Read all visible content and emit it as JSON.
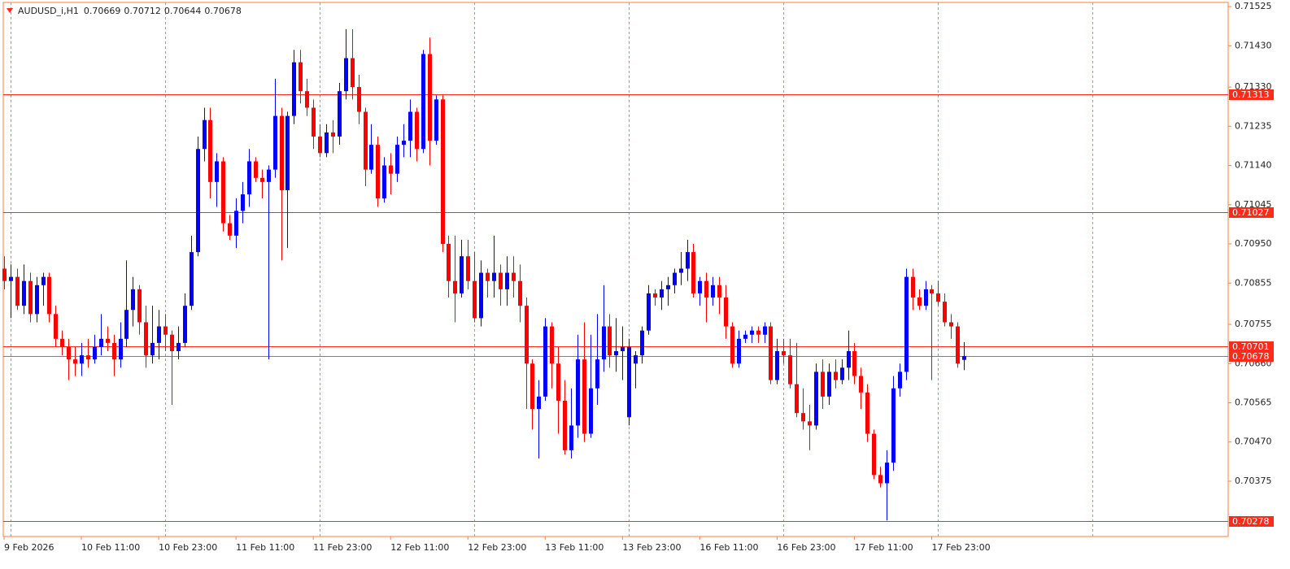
{
  "chart_data": {
    "type": "candlestick",
    "symbol": "AUDUSD_i,H1",
    "up_color": "#0000ff",
    "down_color": "#ff0000",
    "level_color": "#ff2a1a",
    "last_price_color": "#7f7f7f",
    "ylim": [
      0.70241,
      0.71535
    ],
    "yticks": [
      0.71525,
      {
        "value": 0.7143,
        "label": "0.71430"
      },
      {
        "value": 0.7133,
        "label": "0.71330"
      },
      0.71235,
      {
        "value": 0.7114,
        "label": "0.71140"
      },
      0.71045,
      {
        "value": 0.7095,
        "label": "0.70950"
      },
      0.70855,
      0.70755,
      {
        "value": 0.7066,
        "label": "0.70660"
      },
      0.70565,
      {
        "value": 0.7047,
        "label": "0.70470"
      },
      0.70375
    ],
    "levels": [
      0.71313,
      0.71027,
      0.70701,
      0.70278
    ],
    "categories": [
      "9 Feb 2026",
      null,
      null,
      null,
      null,
      null,
      null,
      null,
      null,
      null,
      null,
      null,
      "10 Feb 11:00",
      null,
      null,
      null,
      null,
      null,
      null,
      null,
      null,
      null,
      null,
      null,
      "10 Feb 23:00",
      null,
      null,
      null,
      null,
      null,
      null,
      null,
      null,
      null,
      null,
      null,
      "11 Feb 11:00",
      null,
      null,
      null,
      null,
      null,
      null,
      null,
      null,
      null,
      null,
      null,
      "11 Feb 23:00",
      null,
      null,
      null,
      null,
      null,
      null,
      null,
      null,
      null,
      null,
      null,
      "12 Feb 11:00",
      null,
      null,
      null,
      null,
      null,
      null,
      null,
      null,
      null,
      null,
      null,
      "12 Feb 23:00",
      null,
      null,
      null,
      null,
      null,
      null,
      null,
      null,
      null,
      null,
      null,
      "13 Feb 11:00",
      null,
      null,
      null,
      null,
      null,
      null,
      null,
      null,
      null,
      null,
      null,
      "13 Feb 23:00",
      null,
      null,
      null,
      null,
      null,
      null,
      null,
      null,
      null,
      null,
      null,
      "16 Feb 11:00",
      null,
      null,
      null,
      null,
      null,
      null,
      null,
      null,
      null,
      null,
      null,
      "16 Feb 23:00",
      null,
      null,
      null,
      null,
      null,
      null,
      null,
      null,
      null,
      null,
      null,
      "17 Feb 11:00",
      null,
      null,
      null,
      null,
      null,
      null,
      null,
      null,
      null,
      null,
      null,
      "17 Feb 23:00",
      null,
      null,
      null,
      null,
      null
    ],
    "ohlc": [
      [
        0.7089,
        0.7092,
        0.7084,
        0.7086
      ],
      [
        0.7086,
        0.709,
        0.7077,
        0.7087
      ],
      [
        0.7087,
        0.7089,
        0.7079,
        0.708
      ],
      [
        0.708,
        0.709,
        0.7078,
        0.7086
      ],
      [
        0.7086,
        0.7088,
        0.7076,
        0.7078
      ],
      [
        0.7078,
        0.7087,
        0.7076,
        0.7085
      ],
      [
        0.7085,
        0.7088,
        0.708,
        0.7087
      ],
      [
        0.7087,
        0.7088,
        0.7076,
        0.7078
      ],
      [
        0.7078,
        0.708,
        0.707,
        0.7072
      ],
      [
        0.7072,
        0.7074,
        0.7068,
        0.707
      ],
      [
        0.707,
        0.7072,
        0.7062,
        0.7067
      ],
      [
        0.7067,
        0.707,
        0.7063,
        0.7066
      ],
      [
        0.7066,
        0.7071,
        0.7063,
        0.7068
      ],
      [
        0.7068,
        0.7072,
        0.7065,
        0.7067
      ],
      [
        0.7067,
        0.7073,
        0.7066,
        0.707
      ],
      [
        0.707,
        0.7078,
        0.7068,
        0.7072
      ],
      [
        0.7072,
        0.7075,
        0.7069,
        0.7071
      ],
      [
        0.7071,
        0.7073,
        0.7063,
        0.7067
      ],
      [
        0.7067,
        0.7076,
        0.7065,
        0.7072
      ],
      [
        0.7072,
        0.7091,
        0.707,
        0.7079
      ],
      [
        0.7079,
        0.7087,
        0.7075,
        0.7084
      ],
      [
        0.7084,
        0.7085,
        0.7073,
        0.7076
      ],
      [
        0.7076,
        0.708,
        0.7065,
        0.7068
      ],
      [
        0.7068,
        0.708,
        0.7066,
        0.7071
      ],
      [
        0.7071,
        0.7079,
        0.7067,
        0.7075
      ],
      [
        0.7075,
        0.7078,
        0.7069,
        0.7073
      ],
      [
        0.7073,
        0.7074,
        0.7056,
        0.7069
      ],
      [
        0.7069,
        0.7075,
        0.7067,
        0.7071
      ],
      [
        0.7071,
        0.7083,
        0.707,
        0.708
      ],
      [
        0.708,
        0.7097,
        0.7079,
        0.7093
      ],
      [
        0.7093,
        0.7121,
        0.7092,
        0.7118
      ],
      [
        0.7118,
        0.7128,
        0.7115,
        0.7125
      ],
      [
        0.7125,
        0.7128,
        0.7106,
        0.711
      ],
      [
        0.711,
        0.7117,
        0.7104,
        0.7115
      ],
      [
        0.7115,
        0.7116,
        0.7098,
        0.71
      ],
      [
        0.71,
        0.7102,
        0.7096,
        0.7097
      ],
      [
        0.7097,
        0.7106,
        0.7094,
        0.7103
      ],
      [
        0.7103,
        0.711,
        0.71,
        0.7107
      ],
      [
        0.7107,
        0.7118,
        0.7104,
        0.7115
      ],
      [
        0.7115,
        0.7116,
        0.711,
        0.7111
      ],
      [
        0.7111,
        0.7113,
        0.7106,
        0.711
      ],
      [
        0.711,
        0.7114,
        0.7067,
        0.7113
      ],
      [
        0.7113,
        0.7135,
        0.7111,
        0.7126
      ],
      [
        0.7126,
        0.7128,
        0.7091,
        0.7108
      ],
      [
        0.7108,
        0.7127,
        0.7094,
        0.7126
      ],
      [
        0.7126,
        0.7142,
        0.7124,
        0.7139
      ],
      [
        0.7139,
        0.7142,
        0.7129,
        0.7132
      ],
      [
        0.7132,
        0.7135,
        0.7126,
        0.7128
      ],
      [
        0.7128,
        0.713,
        0.7118,
        0.7121
      ],
      [
        0.7121,
        0.7124,
        0.7116,
        0.7117
      ],
      [
        0.7117,
        0.7124,
        0.7116,
        0.7122
      ],
      [
        0.7122,
        0.7125,
        0.7117,
        0.7121
      ],
      [
        0.7121,
        0.7134,
        0.7119,
        0.7132
      ],
      [
        0.7132,
        0.7147,
        0.713,
        0.714
      ],
      [
        0.714,
        0.7147,
        0.713,
        0.7133
      ],
      [
        0.7133,
        0.7136,
        0.7124,
        0.7127
      ],
      [
        0.7127,
        0.7128,
        0.7109,
        0.7113
      ],
      [
        0.7113,
        0.7124,
        0.7112,
        0.7119
      ],
      [
        0.7119,
        0.7121,
        0.7104,
        0.7106
      ],
      [
        0.7106,
        0.7116,
        0.7105,
        0.7114
      ],
      [
        0.7114,
        0.7117,
        0.7107,
        0.7112
      ],
      [
        0.7112,
        0.7121,
        0.711,
        0.7119
      ],
      [
        0.7119,
        0.7124,
        0.7116,
        0.712
      ],
      [
        0.712,
        0.713,
        0.7116,
        0.7127
      ],
      [
        0.7127,
        0.7128,
        0.7115,
        0.7118
      ],
      [
        0.7118,
        0.7142,
        0.7117,
        0.7141
      ],
      [
        0.7141,
        0.7145,
        0.7114,
        0.712
      ],
      [
        0.712,
        0.7131,
        0.7119,
        0.713
      ],
      [
        0.713,
        0.7131,
        0.7093,
        0.7095
      ],
      [
        0.7095,
        0.7097,
        0.7082,
        0.7086
      ],
      [
        0.7086,
        0.7097,
        0.7076,
        0.7083
      ],
      [
        0.7083,
        0.7096,
        0.7082,
        0.7092
      ],
      [
        0.7092,
        0.7096,
        0.7084,
        0.7086
      ],
      [
        0.7086,
        0.7093,
        0.7076,
        0.7077
      ],
      [
        0.7077,
        0.7091,
        0.7075,
        0.7088
      ],
      [
        0.7088,
        0.7089,
        0.7082,
        0.7086
      ],
      [
        0.7086,
        0.7097,
        0.7082,
        0.7088
      ],
      [
        0.7088,
        0.709,
        0.708,
        0.7084
      ],
      [
        0.7084,
        0.7092,
        0.708,
        0.7088
      ],
      [
        0.7088,
        0.7092,
        0.7082,
        0.7086
      ],
      [
        0.7086,
        0.709,
        0.7076,
        0.708
      ],
      [
        0.708,
        0.7082,
        0.7055,
        0.7066
      ],
      [
        0.7066,
        0.7067,
        0.705,
        0.7055
      ],
      [
        0.7055,
        0.7062,
        0.7043,
        0.7058
      ],
      [
        0.7058,
        0.7077,
        0.7057,
        0.7075
      ],
      [
        0.7075,
        0.7076,
        0.706,
        0.7066
      ],
      [
        0.7066,
        0.707,
        0.7049,
        0.7057
      ],
      [
        0.7057,
        0.7062,
        0.7044,
        0.7045
      ],
      [
        0.7045,
        0.706,
        0.7043,
        0.7051
      ],
      [
        0.7051,
        0.7073,
        0.7048,
        0.7067
      ],
      [
        0.7067,
        0.7076,
        0.7047,
        0.7049
      ],
      [
        0.7049,
        0.7073,
        0.7048,
        0.706
      ],
      [
        0.706,
        0.7078,
        0.7056,
        0.7067
      ],
      [
        0.7067,
        0.7085,
        0.7064,
        0.7075
      ],
      [
        0.7075,
        0.7078,
        0.7065,
        0.7068
      ],
      [
        0.7068,
        0.7077,
        0.7064,
        0.7069
      ],
      [
        0.7069,
        0.7075,
        0.7062,
        0.707
      ],
      [
        0.7053,
        0.7072,
        0.7051,
        0.707
      ],
      [
        0.7066,
        0.7069,
        0.706,
        0.7068
      ],
      [
        0.7068,
        0.7075,
        0.7066,
        0.7074
      ],
      [
        0.7074,
        0.7085,
        0.7073,
        0.7083
      ],
      [
        0.7083,
        0.7084,
        0.708,
        0.7082
      ],
      [
        0.7082,
        0.7086,
        0.7079,
        0.7084
      ],
      [
        0.7084,
        0.7087,
        0.708,
        0.7085
      ],
      [
        0.7085,
        0.7089,
        0.7083,
        0.7088
      ],
      [
        0.7088,
        0.7093,
        0.7085,
        0.7089
      ],
      [
        0.7089,
        0.7096,
        0.7086,
        0.7093
      ],
      [
        0.7093,
        0.7095,
        0.7082,
        0.7083
      ],
      [
        0.7083,
        0.7087,
        0.708,
        0.7086
      ],
      [
        0.7086,
        0.7088,
        0.7076,
        0.7082
      ],
      [
        0.7082,
        0.7087,
        0.708,
        0.7085
      ],
      [
        0.7085,
        0.7087,
        0.7078,
        0.7082
      ],
      [
        0.7082,
        0.7085,
        0.7072,
        0.7075
      ],
      [
        0.7075,
        0.7076,
        0.7065,
        0.7066
      ],
      [
        0.7066,
        0.7074,
        0.7065,
        0.7072
      ],
      [
        0.7072,
        0.7074,
        0.7071,
        0.7073
      ],
      [
        0.7073,
        0.7075,
        0.7071,
        0.7074
      ],
      [
        0.7074,
        0.7075,
        0.7071,
        0.7073
      ],
      [
        0.7073,
        0.7076,
        0.7071,
        0.7075
      ],
      [
        0.7075,
        0.7076,
        0.7061,
        0.7062
      ],
      [
        0.7062,
        0.7072,
        0.7061,
        0.7069
      ],
      [
        0.7069,
        0.7072,
        0.7066,
        0.7068
      ],
      [
        0.7068,
        0.7072,
        0.706,
        0.7061
      ],
      [
        0.7061,
        0.7071,
        0.7053,
        0.7054
      ],
      [
        0.7054,
        0.706,
        0.705,
        0.7052
      ],
      [
        0.7052,
        0.7056,
        0.7045,
        0.7051
      ],
      [
        0.7051,
        0.7066,
        0.705,
        0.7064
      ],
      [
        0.7064,
        0.7067,
        0.7055,
        0.7058
      ],
      [
        0.7058,
        0.7066,
        0.7056,
        0.7064
      ],
      [
        0.7064,
        0.7067,
        0.706,
        0.7062
      ],
      [
        0.7062,
        0.7067,
        0.7061,
        0.7065
      ],
      [
        0.7065,
        0.7074,
        0.7062,
        0.7069
      ],
      [
        0.7069,
        0.7071,
        0.7061,
        0.7063
      ],
      [
        0.7063,
        0.7065,
        0.7055,
        0.7059
      ],
      [
        0.7059,
        0.7061,
        0.7047,
        0.7049
      ],
      [
        0.7049,
        0.705,
        0.7038,
        0.7039
      ],
      [
        0.7039,
        0.7041,
        0.7036,
        0.7037
      ],
      [
        0.7037,
        0.7045,
        0.7028,
        0.7042
      ],
      [
        0.7042,
        0.7063,
        0.704,
        0.706
      ],
      [
        0.706,
        0.7066,
        0.7058,
        0.7064
      ],
      [
        0.7064,
        0.7089,
        0.7062,
        0.7087
      ],
      [
        0.7087,
        0.7089,
        0.7079,
        0.7082
      ],
      [
        0.7082,
        0.7084,
        0.7079,
        0.708
      ],
      [
        0.708,
        0.7086,
        0.7079,
        0.7084
      ],
      [
        0.7084,
        0.7085,
        0.7062,
        0.7083
      ],
      [
        0.7083,
        0.7086,
        0.708,
        0.7081
      ],
      [
        0.7081,
        0.7083,
        0.7075,
        0.7076
      ],
      [
        0.7076,
        0.7078,
        0.7072,
        0.7075
      ],
      [
        0.7075,
        0.7076,
        0.7065,
        0.7066
      ],
      [
        0.70669,
        0.70712,
        0.70644,
        0.70678
      ]
    ]
  }
}
